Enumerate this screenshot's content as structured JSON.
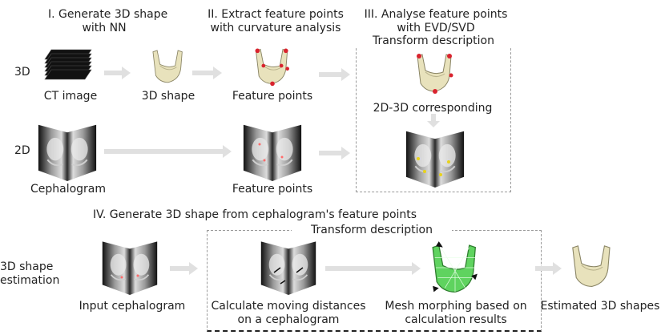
{
  "colors": {
    "arrow": "#e0e0e0",
    "dashed_box": "#9a9a9a",
    "bone": "#e8e2bc",
    "feature_point": "#d9232e",
    "mesh": "#5fd35f",
    "xray_dark": "#1c1c1c",
    "xray_light": "#d6d6d6"
  },
  "steps": {
    "step1": "I. Generate 3D shape",
    "step1_line2": "with NN",
    "step2": "II. Extract feature points",
    "step2_line2": "with curvature analysis",
    "step3": "III. Analyse feature points",
    "step3_line2": "with EVD/SVD",
    "step4": "IV. Generate 3D shape from cephalogram's feature points"
  },
  "rows": {
    "row_3d": "3D",
    "row_2d": "2D",
    "row_est_line1": "3D shape",
    "row_est_line2": "estimation"
  },
  "labels": {
    "ct_image": "CT image",
    "shape_3d": "3D shape",
    "feature_points_3d": "Feature points",
    "corresponding": "2D-3D corresponding",
    "cephalogram": "Cephalogram",
    "feature_points_2d": "Feature points",
    "input_cephalogram": "Input cephalogram",
    "calc_line1": "Calculate moving distances",
    "calc_line2": "on a cephalogram",
    "morph_line1": "Mesh morphing based on",
    "morph_line2": "calculation results",
    "estimated": "Estimated 3D shapes"
  },
  "boxes": {
    "top_title": "Transform description",
    "bottom_title": "Transform description"
  }
}
